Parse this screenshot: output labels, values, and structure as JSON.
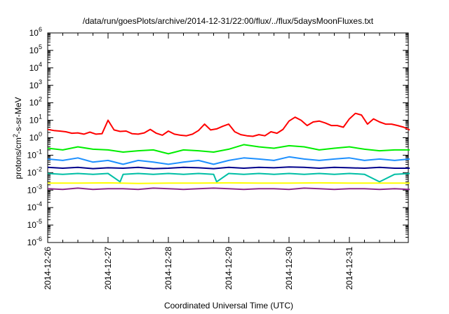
{
  "chart_data": {
    "type": "line",
    "title": "/data/run/goesPlots/archive/2014-12-31/22:00/flux/../flux/5daysMoonFluxes.txt",
    "xlabel": "Coordinated Universal Time (UTC)",
    "ylabel": {
      "base": "protons/cm",
      "sup": "2",
      "rest": "-s-sr-MeV"
    },
    "yscale": "log",
    "ylim": [
      1e-06,
      1000000.0
    ],
    "yticks": [
      {
        "base": "10",
        "exp": "-6",
        "value": -6
      },
      {
        "base": "10",
        "exp": "-5",
        "value": -5
      },
      {
        "base": "10",
        "exp": "-4",
        "value": -4
      },
      {
        "base": "10",
        "exp": "-3",
        "value": -3
      },
      {
        "base": "10",
        "exp": "-2",
        "value": -2
      },
      {
        "base": "10",
        "exp": "-1",
        "value": -1
      },
      {
        "base": "10",
        "exp": "0",
        "value": 0
      },
      {
        "base": "10",
        "exp": "1",
        "value": 1
      },
      {
        "base": "10",
        "exp": "2",
        "value": 2
      },
      {
        "base": "10",
        "exp": "3",
        "value": 3
      },
      {
        "base": "10",
        "exp": "4",
        "value": 4
      },
      {
        "base": "10",
        "exp": "5",
        "value": 5
      },
      {
        "base": "10",
        "exp": "6",
        "value": 6
      }
    ],
    "x_range_days": [
      0,
      6
    ],
    "xticks": [
      {
        "label": "2014-12-26",
        "day": 0
      },
      {
        "label": "2014-12-27",
        "day": 1
      },
      {
        "label": "2014-12-28",
        "day": 2
      },
      {
        "label": "2014-12-29",
        "day": 3
      },
      {
        "label": "2014-12-30",
        "day": 4
      },
      {
        "label": "2014-12-31",
        "day": 5
      }
    ],
    "grid": false,
    "series": [
      {
        "color": "#ff0000",
        "x": [
          0,
          0.1,
          0.2,
          0.3,
          0.4,
          0.5,
          0.6,
          0.7,
          0.8,
          0.9,
          1.0,
          1.1,
          1.2,
          1.3,
          1.4,
          1.5,
          1.6,
          1.7,
          1.8,
          1.9,
          2.0,
          2.1,
          2.2,
          2.3,
          2.4,
          2.5,
          2.6,
          2.7,
          2.8,
          2.9,
          3.0,
          3.1,
          3.2,
          3.3,
          3.4,
          3.5,
          3.6,
          3.7,
          3.8,
          3.9,
          4.0,
          4.1,
          4.2,
          4.3,
          4.4,
          4.5,
          4.6,
          4.7,
          4.8,
          4.9,
          5.0,
          5.1,
          5.2,
          5.3,
          5.4,
          5.5,
          5.6,
          5.7,
          5.8,
          5.9,
          6.0
        ],
        "values": [
          3,
          2.6,
          2.4,
          2.2,
          1.8,
          1.9,
          1.6,
          2.1,
          1.6,
          1.7,
          10,
          2.8,
          2.3,
          2.4,
          1.7,
          1.6,
          1.9,
          3,
          1.8,
          1.4,
          2.4,
          1.6,
          1.4,
          1.3,
          1.6,
          2.6,
          6,
          2.8,
          3.2,
          4.5,
          6,
          2.2,
          1.5,
          1.3,
          1.2,
          1.5,
          1.3,
          2.2,
          1.8,
          3,
          9,
          15,
          10,
          5,
          8,
          9,
          7,
          5,
          5,
          4,
          12,
          25,
          20,
          6,
          12,
          8,
          6,
          6,
          5,
          4,
          2.8
        ]
      },
      {
        "color": "#00ee00",
        "x": [
          0,
          0.25,
          0.5,
          0.75,
          1.0,
          1.25,
          1.5,
          1.75,
          2.0,
          2.25,
          2.5,
          2.75,
          3.0,
          3.25,
          3.5,
          3.75,
          4.0,
          4.25,
          4.5,
          4.75,
          5.0,
          5.25,
          5.5,
          5.75,
          6.0
        ],
        "values": [
          0.25,
          0.2,
          0.3,
          0.22,
          0.2,
          0.15,
          0.18,
          0.2,
          0.12,
          0.2,
          0.18,
          0.15,
          0.22,
          0.4,
          0.3,
          0.25,
          0.35,
          0.3,
          0.2,
          0.25,
          0.3,
          0.22,
          0.18,
          0.2,
          0.2
        ]
      },
      {
        "color": "#1e90ff",
        "x": [
          0,
          0.25,
          0.5,
          0.75,
          1.0,
          1.25,
          1.5,
          1.75,
          2.0,
          2.25,
          2.5,
          2.75,
          3.0,
          3.25,
          3.5,
          3.75,
          4.0,
          4.25,
          4.5,
          4.75,
          5.0,
          5.25,
          5.5,
          5.75,
          6.0
        ],
        "values": [
          0.06,
          0.05,
          0.07,
          0.04,
          0.05,
          0.03,
          0.05,
          0.04,
          0.03,
          0.04,
          0.05,
          0.03,
          0.05,
          0.07,
          0.06,
          0.05,
          0.08,
          0.06,
          0.05,
          0.06,
          0.07,
          0.05,
          0.06,
          0.05,
          0.06
        ]
      },
      {
        "color": "#00008b",
        "x": [
          0,
          0.25,
          0.5,
          0.75,
          1.0,
          1.25,
          1.5,
          1.75,
          2.0,
          2.25,
          2.5,
          2.75,
          3.0,
          3.25,
          3.5,
          3.75,
          4.0,
          4.25,
          4.5,
          4.75,
          5.0,
          5.25,
          5.5,
          5.75,
          6.0
        ],
        "values": [
          0.02,
          0.018,
          0.02,
          0.017,
          0.019,
          0.018,
          0.02,
          0.017,
          0.018,
          0.02,
          0.019,
          0.017,
          0.02,
          0.018,
          0.02,
          0.019,
          0.021,
          0.02,
          0.018,
          0.02,
          0.019,
          0.018,
          0.02,
          0.018,
          0.018
        ]
      },
      {
        "color": "#00bfa5",
        "x": [
          0,
          0.25,
          0.5,
          0.75,
          1.0,
          1.2,
          1.25,
          1.5,
          1.75,
          2.0,
          2.25,
          2.5,
          2.75,
          2.8,
          3.0,
          3.25,
          3.5,
          3.75,
          4.0,
          4.25,
          4.5,
          4.75,
          5.0,
          5.25,
          5.5,
          5.75,
          6.0
        ],
        "values": [
          0.009,
          0.008,
          0.009,
          0.008,
          0.009,
          0.003,
          0.008,
          0.009,
          0.008,
          0.009,
          0.008,
          0.009,
          0.008,
          0.003,
          0.009,
          0.008,
          0.009,
          0.008,
          0.009,
          0.008,
          0.009,
          0.008,
          0.009,
          0.008,
          0.003,
          0.008,
          0.009
        ]
      },
      {
        "color": "#ffff00",
        "x": [
          0,
          0.5,
          1.0,
          1.5,
          2.0,
          2.5,
          3.0,
          3.5,
          4.0,
          4.5,
          5.0,
          5.5,
          6.0
        ],
        "values": [
          0.0025,
          0.0025,
          0.0026,
          0.0024,
          0.0025,
          0.0025,
          0.0026,
          0.0025,
          0.0025,
          0.0026,
          0.0025,
          0.0025,
          0.0025
        ]
      },
      {
        "color": "#8b2a8b",
        "x": [
          0,
          0.25,
          0.5,
          0.75,
          1.0,
          1.25,
          1.5,
          1.75,
          2.0,
          2.25,
          2.5,
          2.75,
          3.0,
          3.25,
          3.5,
          3.75,
          4.0,
          4.25,
          4.5,
          4.75,
          5.0,
          5.25,
          5.5,
          5.75,
          6.0
        ],
        "values": [
          0.0012,
          0.0011,
          0.0013,
          0.0011,
          0.0012,
          0.0012,
          0.0011,
          0.0013,
          0.0012,
          0.0011,
          0.0012,
          0.0013,
          0.0012,
          0.0011,
          0.0012,
          0.0012,
          0.0011,
          0.0013,
          0.0012,
          0.0011,
          0.0012,
          0.0012,
          0.0011,
          0.0012,
          0.0011
        ]
      }
    ]
  }
}
